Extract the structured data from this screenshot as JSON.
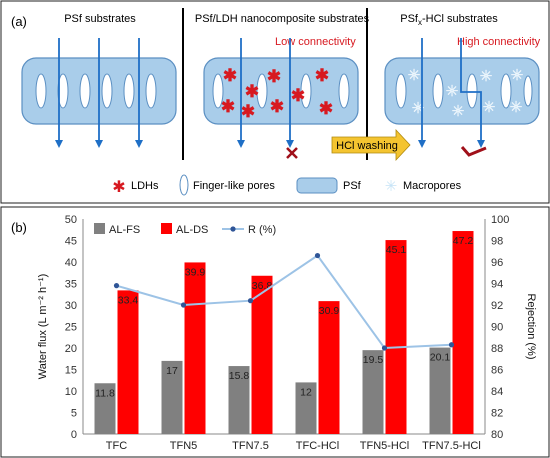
{
  "panel_a": {
    "label": "(a)",
    "titles": [
      "PSf substrates",
      "PSf/LDH nanocomposite substrates",
      "PSf",
      "-HCl substrates"
    ],
    "title_sub": "x",
    "connectivity_low": "Low connectivity",
    "connectivity_high": "High connectivity",
    "washing_label": "HCl washing",
    "legend": [
      "LDHs",
      "Finger-like pores",
      "PSf",
      "Macropores"
    ],
    "colors": {
      "membrane": "#a9cdea",
      "membrane_edge": "#5b8fc2",
      "arrow": "#1f6fc6",
      "red": "#d71920",
      "macropore": "#c7e4f7",
      "washing": "#f4c430"
    }
  },
  "panel_b": {
    "label": "(b)"
  },
  "chart_data": {
    "type": "bar",
    "categories": [
      "TFC",
      "TFN5",
      "TFN7.5",
      "TFC-HCl",
      "TFN5-HCl",
      "TFN7.5-HCl"
    ],
    "series": [
      {
        "name": "AL-FS",
        "kind": "bar",
        "axis": "left",
        "color": "#808080",
        "values": [
          11.8,
          17,
          15.8,
          12,
          19.5,
          20.1
        ],
        "labels": [
          "11.8",
          "17",
          "15.8",
          "12",
          "19.5",
          "20.1"
        ]
      },
      {
        "name": "AL-DS",
        "kind": "bar",
        "axis": "left",
        "color": "#ff0000",
        "values": [
          33.4,
          39.9,
          36.8,
          30.9,
          45.1,
          47.2
        ],
        "labels": [
          "33.4",
          "39.9",
          "36.8",
          "30.9",
          "45.1",
          "47.2"
        ]
      },
      {
        "name": "R (%)",
        "kind": "line",
        "axis": "right",
        "color": "#2f5597",
        "line_color": "#9dc3e6",
        "values": [
          93.8,
          92.0,
          92.4,
          96.6,
          88.0,
          88.3
        ]
      }
    ],
    "ylabel_left": "Water flux (L m⁻² h⁻¹)",
    "ylabel_right": "Rejection (%)",
    "ylim_left": [
      0,
      50
    ],
    "yticks_left": [
      "0",
      "5",
      "10",
      "15",
      "20",
      "25",
      "30",
      "35",
      "40",
      "45",
      "50"
    ],
    "ylim_right": [
      80,
      100
    ],
    "yticks_right": [
      "80",
      "82",
      "84",
      "86",
      "88",
      "90",
      "92",
      "94",
      "96",
      "98",
      "100"
    ],
    "grid": false,
    "legend_position": "top-left"
  }
}
